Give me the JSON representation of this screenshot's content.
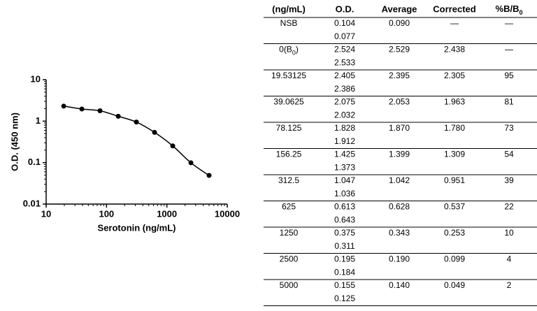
{
  "chart_data": {
    "type": "line",
    "x_label": "Serotonin (ng/mL)",
    "y_label": "O.D. (450 nm)",
    "x": [
      19.53125,
      39.0625,
      78.125,
      156.25,
      312.5,
      625,
      1250,
      2500,
      5000
    ],
    "values": [
      2.305,
      1.963,
      1.78,
      1.309,
      0.951,
      0.537,
      0.253,
      0.099,
      0.049
    ],
    "color": "#000000",
    "log_x": true,
    "log_y": true,
    "xlim": [
      10,
      10000
    ],
    "xticks": [
      10,
      100,
      1000,
      10000
    ],
    "ylim": [
      0.01,
      10
    ],
    "yticks": [
      0.01,
      0.1,
      1,
      10
    ]
  },
  "table": {
    "header": [
      "(ng/mL)",
      "O.D.",
      "Average",
      "Corrected",
      {
        "text": "%B/B",
        "sub": "0"
      }
    ],
    "rows": [
      {
        "conc": "NSB",
        "od": [
          "0.104",
          "0.077"
        ],
        "average": "0.090",
        "corrected": "—",
        "pct": "—"
      },
      {
        "conc": {
          "text": "0(B",
          "sub": "0",
          "after": ")"
        },
        "od": [
          "2.524",
          "2.533"
        ],
        "average": "2.529",
        "corrected": "2.438",
        "pct": "—"
      },
      {
        "conc": "19.53125",
        "od": [
          "2.405",
          "2.386"
        ],
        "average": "2.395",
        "corrected": "2.305",
        "pct": "95"
      },
      {
        "conc": "39.0625",
        "od": [
          "2.075",
          "2.032"
        ],
        "average": "2.053",
        "corrected": "1.963",
        "pct": "81"
      },
      {
        "conc": "78.125",
        "od": [
          "1.828",
          "1.912"
        ],
        "average": "1.870",
        "corrected": "1.780",
        "pct": "73"
      },
      {
        "conc": "156.25",
        "od": [
          "1.425",
          "1.373"
        ],
        "average": "1.399",
        "corrected": "1.309",
        "pct": "54"
      },
      {
        "conc": "312.5",
        "od": [
          "1.047",
          "1.036"
        ],
        "average": "1.042",
        "corrected": "0.951",
        "pct": "39"
      },
      {
        "conc": "625",
        "od": [
          "0.613",
          "0.643"
        ],
        "average": "0.628",
        "corrected": "0.537",
        "pct": "22"
      },
      {
        "conc": "1250",
        "od": [
          "0.375",
          "0.311"
        ],
        "average": "0.343",
        "corrected": "0.253",
        "pct": "10"
      },
      {
        "conc": "2500",
        "od": [
          "0.195",
          "0.184"
        ],
        "average": "0.190",
        "corrected": "0.099",
        "pct": "4"
      },
      {
        "conc": "5000",
        "od": [
          "0.155",
          "0.125"
        ],
        "average": "0.140",
        "corrected": "0.049",
        "pct": "2"
      }
    ]
  }
}
